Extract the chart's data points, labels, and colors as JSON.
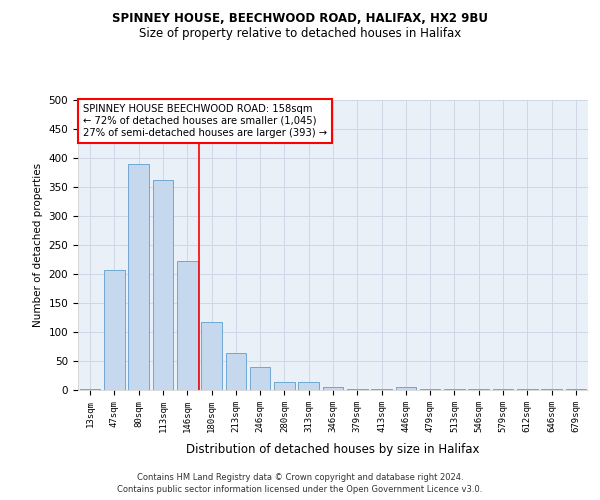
{
  "title1": "SPINNEY HOUSE, BEECHWOOD ROAD, HALIFAX, HX2 9BU",
  "title2": "Size of property relative to detached houses in Halifax",
  "xlabel": "Distribution of detached houses by size in Halifax",
  "ylabel": "Number of detached properties",
  "bar_labels": [
    "13sqm",
    "47sqm",
    "80sqm",
    "113sqm",
    "146sqm",
    "180sqm",
    "213sqm",
    "246sqm",
    "280sqm",
    "313sqm",
    "346sqm",
    "379sqm",
    "413sqm",
    "446sqm",
    "479sqm",
    "513sqm",
    "546sqm",
    "579sqm",
    "612sqm",
    "646sqm",
    "679sqm"
  ],
  "bar_values": [
    2,
    207,
    390,
    362,
    222,
    117,
    63,
    40,
    13,
    13,
    6,
    1,
    1,
    6,
    1,
    1,
    1,
    1,
    1,
    1,
    1
  ],
  "bar_color": "#c5d8ed",
  "bar_edge_color": "#6fa8d2",
  "bar_width": 0.85,
  "ylim": [
    0,
    500
  ],
  "yticks": [
    0,
    50,
    100,
    150,
    200,
    250,
    300,
    350,
    400,
    450,
    500
  ],
  "red_line_x": 4.5,
  "annotation_line1": "SPINNEY HOUSE BEECHWOOD ROAD: 158sqm",
  "annotation_line2": "← 72% of detached houses are smaller (1,045)",
  "annotation_line3": "27% of semi-detached houses are larger (393) →",
  "annotation_box_color": "white",
  "annotation_box_edge_color": "red",
  "footer1": "Contains HM Land Registry data © Crown copyright and database right 2024.",
  "footer2": "Contains public sector information licensed under the Open Government Licence v3.0.",
  "grid_color": "#d0d8e8",
  "bg_color": "#eaf0f8",
  "title1_fontsize": 8.5,
  "title2_fontsize": 8.5
}
